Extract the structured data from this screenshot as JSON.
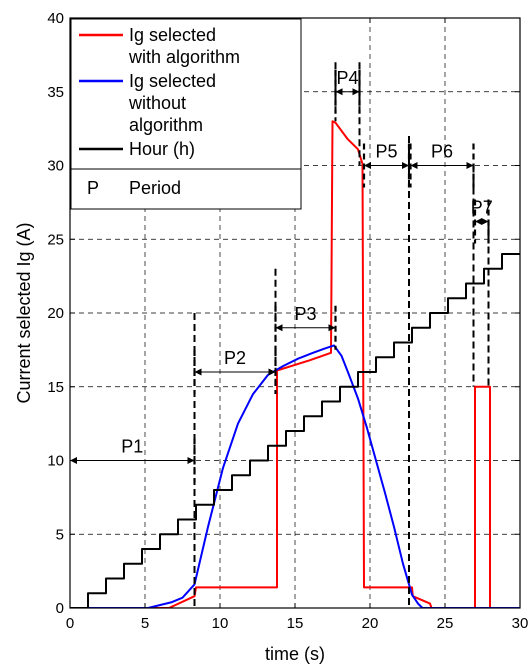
{
  "chart_data": {
    "type": "line",
    "xlabel": "time (s)",
    "ylabel": "Current selected Ig (A)",
    "xlim": [
      0,
      30
    ],
    "ylim": [
      0,
      40
    ],
    "xticks": [
      0,
      5,
      10,
      15,
      20,
      25,
      30
    ],
    "yticks": [
      0,
      5,
      10,
      15,
      20,
      25,
      30,
      35,
      40
    ],
    "grid": true,
    "legend_position": "top-left",
    "colors": {
      "red": "#ff0000",
      "blue": "#0000ff",
      "black": "#000000"
    },
    "series": [
      {
        "name": "Ig selected with algorithm",
        "legend_lines": [
          "Ig selected",
          "with algorithm"
        ],
        "color": "#ff0000",
        "x": [
          0,
          6.6,
          8.3,
          8.4,
          13.8,
          13.8,
          16,
          17.4,
          17.5,
          17.7,
          18.5,
          19.2,
          19.5,
          19.6,
          22.8,
          22.85,
          24,
          24.1,
          27,
          27,
          28,
          28,
          30
        ],
        "y": [
          0,
          0,
          0.8,
          1.4,
          1.4,
          16.1,
          16.8,
          17.3,
          33.0,
          32.9,
          31.8,
          31.1,
          30.1,
          1.4,
          1.4,
          0.8,
          0.3,
          0,
          0,
          15,
          15,
          0,
          0
        ]
      },
      {
        "name": "Ig selected without algorithm",
        "legend_lines": [
          "Ig selected",
          "without",
          "algorithm"
        ],
        "color": "#0000ff",
        "x": [
          0,
          5.2,
          6.8,
          7.5,
          8.3,
          9.2,
          10.2,
          11.2,
          12.2,
          13.2,
          14.2,
          15.2,
          16.2,
          17,
          17.6,
          18.1,
          18.6,
          19.2,
          19.8,
          20.4,
          21,
          21.6,
          22.2,
          22.8,
          23.2,
          23.5,
          30
        ],
        "y": [
          0,
          0,
          0.4,
          0.7,
          1.6,
          5.5,
          9.5,
          12.5,
          14.5,
          15.8,
          16.4,
          16.9,
          17.3,
          17.6,
          17.8,
          17.1,
          15.8,
          14.2,
          12.2,
          10.0,
          7.8,
          5.5,
          3.0,
          0.9,
          0.3,
          0,
          0
        ]
      },
      {
        "name": "Hour (h)",
        "legend_lines": [
          "Hour (h)"
        ],
        "color": "#000000",
        "step": true,
        "step_start": 1.2,
        "step_width": 1.2,
        "levels": 24
      }
    ],
    "legend_extra": {
      "symbol": "P",
      "label": "Period"
    },
    "periods": [
      {
        "label": "P1",
        "x_start": 0,
        "x_end": 8.3,
        "y": 10
      },
      {
        "label": "P2",
        "x_start": 8.3,
        "x_end": 13.7,
        "y": 16
      },
      {
        "label": "P3",
        "x_start": 13.7,
        "x_end": 17.7,
        "y": 19
      },
      {
        "label": "P4",
        "x_start": 17.7,
        "x_end": 19.3,
        "y": 35
      },
      {
        "label": "P5",
        "x_start": 19.6,
        "x_end": 22.6,
        "y": 30
      },
      {
        "label": "P6",
        "x_start": 22.7,
        "x_end": 26.9,
        "y": 30
      },
      {
        "label": "P7",
        "x_start": 27.0,
        "x_end": 27.9,
        "y": 26.2
      }
    ]
  }
}
